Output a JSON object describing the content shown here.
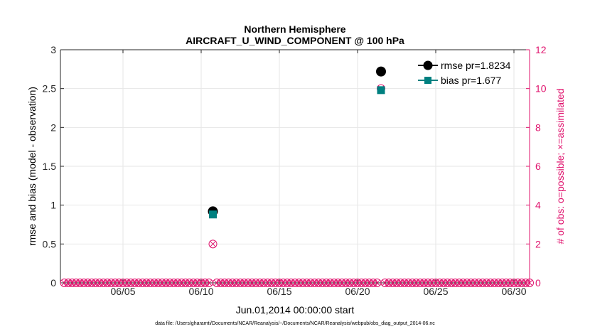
{
  "chart_data": {
    "type": "scatter",
    "title": [
      "Northern Hemisphere",
      "AIRCRAFT_U_WIND_COMPONENT @ 100 hPa"
    ],
    "xlabel": "Jun.01,2014 00:00:00 start",
    "ylabel": "rmse and bias (model - observation)",
    "ylabel_right": "# of obs: o=possible; ×=assimilated",
    "footer": "data file: /Users/gharamti/Documents/NCAR/Reanalysis/~/Documents/NCAR/Reanalysis/webpub/obs_diag_output_2014-06.nc",
    "xlim": [
      1,
      31
    ],
    "x_ticks": [
      5,
      10,
      15,
      20,
      25,
      30
    ],
    "x_tick_labels": [
      "06/05",
      "06/10",
      "06/15",
      "06/20",
      "06/25",
      "06/30"
    ],
    "ylim": [
      0,
      3
    ],
    "y_ticks": [
      0,
      0.5,
      1,
      1.5,
      2,
      2.5,
      3
    ],
    "y_tick_labels": [
      "0",
      "0.5",
      "1",
      "1.5",
      "2",
      "2.5",
      "3"
    ],
    "ylim_right": [
      0,
      12
    ],
    "y_ticks_right": [
      0,
      2,
      4,
      6,
      8,
      10,
      12
    ],
    "y_tick_labels_right": [
      "0",
      "2",
      "4",
      "6",
      "8",
      "10",
      "12"
    ],
    "grid": true,
    "legend_position": "top-right",
    "colors": {
      "rmse": "#000000",
      "bias": "#008080",
      "obs": "#e0146e",
      "grid": "#e6e6e6",
      "axis": "#262626"
    },
    "series": [
      {
        "name": "rmse",
        "legend_label": "rmse pr=1.8234",
        "marker": "circle",
        "points": [
          {
            "x": 10.75,
            "y": 0.92
          },
          {
            "x": 21.5,
            "y": 2.72
          }
        ]
      },
      {
        "name": "bias",
        "legend_label": "bias pr=1.677",
        "marker": "square",
        "points": [
          {
            "x": 10.75,
            "y": 0.88
          },
          {
            "x": 21.5,
            "y": 2.48
          }
        ]
      }
    ],
    "obs_counts": {
      "start": 1.25,
      "step": 0.25,
      "count": 120,
      "default_value": 0,
      "nonzero": [
        {
          "x": 10.75,
          "value": 2
        },
        {
          "x": 21.5,
          "value": 10
        }
      ]
    }
  }
}
